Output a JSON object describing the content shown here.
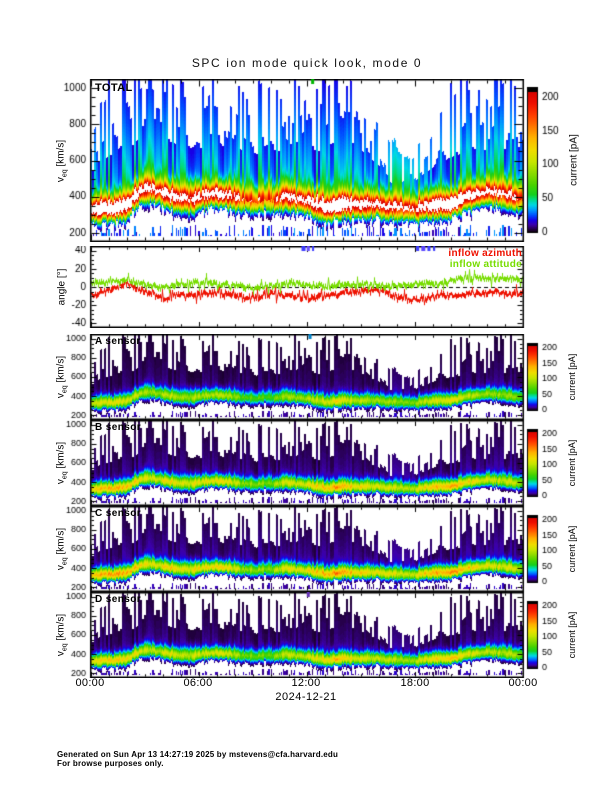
{
  "title": "SPC ion mode quick look, mode 0",
  "time_axis": {
    "tick_labels": [
      "00:00",
      "06:00",
      "12:00",
      "18:00",
      "00:00"
    ],
    "date_label": "2024-12-21",
    "span_hours": 24,
    "major_step_hours": 6,
    "minor_step_hours": 1
  },
  "footer": {
    "line1": "Generated on Sun Apr 13 14:27:19 2025 by mstevens@cfa.harvard.edu",
    "line2": "For browse purposes only."
  },
  "colors": {
    "background": "#ffffff",
    "axis": "#000000",
    "inflow_azimuth": "#ee1100",
    "inflow_attitude": "#77dd00"
  },
  "chart_data": [
    {
      "type": "spectrogram",
      "label": "TOTAL",
      "ylabel": {
        "main": "v",
        "sub": "eq",
        "units": "[km/s]"
      },
      "ylim": [
        150,
        1050
      ],
      "yticks": [
        200,
        400,
        600,
        800,
        1000
      ],
      "ytick_labels": [
        "200",
        "400",
        "600",
        "800",
        "1000"
      ],
      "y_minor_step": 50,
      "colorbar": {
        "title": "current [pA]",
        "ticks": [
          0,
          50,
          100,
          150,
          200
        ],
        "tick_labels": [
          "0",
          "50",
          "100",
          "150",
          "200"
        ],
        "range_pa": [
          0,
          200
        ]
      },
      "seed": 111,
      "amp": 262,
      "tail": 52,
      "patch_scale": 1.0,
      "band_center_kms": [
        330,
        318,
        336,
        425,
        398,
        372,
        382,
        402,
        386,
        356,
        372,
        392,
        376,
        346,
        362,
        352,
        342,
        332,
        330,
        342,
        352,
        382,
        402,
        386,
        372
      ],
      "envelope_top_kms": [
        660,
        780,
        830,
        905,
        875,
        835,
        825,
        855,
        825,
        785,
        820,
        800,
        835,
        805,
        820,
        785,
        700,
        525,
        565,
        705,
        765,
        825,
        785,
        825,
        805
      ],
      "top_marks": [
        {
          "f": 0.513,
          "w": 3,
          "c": "#00b400"
        }
      ]
    },
    {
      "type": "line",
      "label": "",
      "ylabel": "angle [°]",
      "ylim": [
        -45,
        45
      ],
      "yticks": [
        -40,
        -20,
        0,
        20,
        40
      ],
      "ytick_labels": [
        "-40",
        "-20",
        "0",
        "20",
        "40"
      ],
      "y_minor_step": 5,
      "zero_line": true,
      "seed": 222,
      "series": [
        {
          "name": "inflow azimuth",
          "color": "#ee1100",
          "hourly_deg": [
            -10,
            -4,
            3,
            -6,
            -14,
            -9,
            -7,
            -5,
            -9,
            -11,
            -7,
            -9,
            -11,
            -9,
            -7,
            -4,
            -6,
            -14,
            -16,
            -10,
            -9,
            -8,
            -7,
            -8,
            -6
          ]
        },
        {
          "name": "inflow attitude",
          "color": "#77dd00",
          "hourly_deg": [
            3,
            5,
            7,
            2,
            -1,
            2,
            4,
            3,
            2,
            1,
            3,
            5,
            2,
            1,
            3,
            4,
            2,
            1,
            2,
            1,
            5,
            8,
            10,
            9,
            8
          ]
        }
      ],
      "top_marks": [
        {
          "f": 0.492,
          "w": 4,
          "c": "#3c3cff"
        },
        {
          "f": 0.503,
          "w": 3,
          "c": "#6a50ff"
        },
        {
          "f": 0.514,
          "w": 2,
          "c": "#3c3cff"
        },
        {
          "f": 0.755,
          "w": 3,
          "c": "#3c3cff"
        },
        {
          "f": 0.768,
          "w": 4,
          "c": "#5a46ff"
        },
        {
          "f": 0.781,
          "w": 3,
          "c": "#3c3cff"
        },
        {
          "f": 0.793,
          "w": 2,
          "c": "#3c3cff"
        }
      ]
    },
    {
      "type": "spectrogram",
      "label": "A sensor",
      "ylabel": {
        "main": "v",
        "sub": "eq",
        "units": "[km/s]"
      },
      "ylim": [
        150,
        1050
      ],
      "yticks": [
        200,
        400,
        600,
        800,
        1000
      ],
      "ytick_labels": [
        "200",
        "400",
        "600",
        "800",
        "1000"
      ],
      "y_minor_step": 50,
      "colorbar": {
        "title": "current [pA]",
        "ticks": [
          0,
          50,
          100,
          150,
          200
        ],
        "tick_labels": [
          "0",
          "50",
          "100",
          "150",
          "200"
        ],
        "range_pa": [
          0,
          200
        ]
      },
      "seed": 111,
      "amp": 118,
      "tail": 9,
      "patch_scale": 0.45,
      "band_center_kms": [
        330,
        318,
        336,
        425,
        398,
        372,
        382,
        402,
        386,
        356,
        372,
        392,
        376,
        346,
        362,
        352,
        342,
        332,
        330,
        342,
        352,
        382,
        402,
        386,
        372
      ],
      "envelope_top_kms": [
        640,
        755,
        805,
        880,
        850,
        810,
        800,
        830,
        800,
        760,
        795,
        775,
        810,
        780,
        795,
        760,
        680,
        510,
        550,
        685,
        740,
        800,
        760,
        800,
        780
      ],
      "top_marks": [
        {
          "f": 0.507,
          "w": 3,
          "c": "#0082c8"
        }
      ]
    },
    {
      "type": "spectrogram",
      "label": "B sensor",
      "ylabel": {
        "main": "v",
        "sub": "eq",
        "units": "[km/s]"
      },
      "ylim": [
        150,
        1050
      ],
      "yticks": [
        200,
        400,
        600,
        800,
        1000
      ],
      "ytick_labels": [
        "200",
        "400",
        "600",
        "800",
        "1000"
      ],
      "y_minor_step": 50,
      "colorbar": {
        "title": "current [pA]",
        "ticks": [
          0,
          50,
          100,
          150,
          200
        ],
        "tick_labels": [
          "0",
          "50",
          "100",
          "150",
          "200"
        ],
        "range_pa": [
          0,
          200
        ]
      },
      "seed": 111,
      "amp": 142,
      "tail": 11,
      "patch_scale": 0.45,
      "band_center_kms": [
        330,
        318,
        336,
        425,
        398,
        372,
        382,
        402,
        386,
        356,
        372,
        392,
        376,
        346,
        362,
        352,
        342,
        332,
        330,
        342,
        352,
        382,
        402,
        386,
        372
      ],
      "envelope_top_kms": [
        640,
        755,
        805,
        880,
        850,
        810,
        800,
        830,
        800,
        760,
        795,
        775,
        810,
        780,
        795,
        760,
        680,
        510,
        550,
        685,
        740,
        800,
        760,
        800,
        780
      ],
      "top_marks": []
    },
    {
      "type": "spectrogram",
      "label": "C sensor",
      "ylabel": {
        "main": "v",
        "sub": "eq",
        "units": "[km/s]"
      },
      "ylim": [
        150,
        1050
      ],
      "yticks": [
        200,
        400,
        600,
        800,
        1000
      ],
      "ytick_labels": [
        "200",
        "400",
        "600",
        "800",
        "1000"
      ],
      "y_minor_step": 50,
      "colorbar": {
        "title": "current [pA]",
        "ticks": [
          0,
          50,
          100,
          150,
          200
        ],
        "tick_labels": [
          "0",
          "50",
          "100",
          "150",
          "200"
        ],
        "range_pa": [
          0,
          200
        ]
      },
      "seed": 111,
      "amp": 148,
      "tail": 12,
      "patch_scale": 0.45,
      "band_center_kms": [
        330,
        318,
        336,
        425,
        398,
        372,
        382,
        402,
        386,
        356,
        372,
        392,
        376,
        346,
        362,
        352,
        342,
        332,
        330,
        342,
        352,
        382,
        402,
        386,
        372
      ],
      "envelope_top_kms": [
        640,
        755,
        805,
        880,
        850,
        810,
        800,
        830,
        800,
        760,
        795,
        775,
        810,
        780,
        795,
        760,
        680,
        510,
        550,
        685,
        740,
        800,
        760,
        800,
        780
      ],
      "top_marks": []
    },
    {
      "type": "spectrogram",
      "label": "D sensor",
      "ylabel": {
        "main": "v",
        "sub": "eq",
        "units": "[km/s]"
      },
      "ylim": [
        150,
        1050
      ],
      "yticks": [
        200,
        400,
        600,
        800,
        1000
      ],
      "ytick_labels": [
        "200",
        "400",
        "600",
        "800",
        "1000"
      ],
      "y_minor_step": 50,
      "colorbar": {
        "title": "current [pA]",
        "ticks": [
          0,
          50,
          100,
          150,
          200
        ],
        "tick_labels": [
          "0",
          "50",
          "100",
          "150",
          "200"
        ],
        "range_pa": [
          0,
          200
        ]
      },
      "seed": 111,
      "amp": 132,
      "tail": 10,
      "patch_scale": 0.45,
      "band_center_kms": [
        330,
        318,
        336,
        425,
        398,
        372,
        382,
        402,
        386,
        356,
        372,
        392,
        376,
        346,
        362,
        352,
        342,
        332,
        330,
        342,
        352,
        382,
        402,
        386,
        372
      ],
      "envelope_top_kms": [
        640,
        755,
        805,
        880,
        850,
        810,
        800,
        830,
        800,
        760,
        795,
        775,
        810,
        780,
        795,
        760,
        680,
        510,
        550,
        685,
        740,
        800,
        760,
        800,
        780
      ],
      "top_marks": [
        {
          "f": 0.503,
          "w": 3,
          "c": "#6432b4"
        }
      ]
    }
  ]
}
